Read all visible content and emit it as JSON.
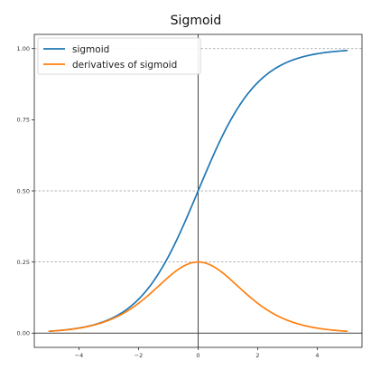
{
  "chart_data": {
    "type": "line",
    "title": "Sigmoid",
    "xlabel": "",
    "ylabel": "",
    "xlim": [
      -5.5,
      5.5
    ],
    "ylim": [
      -0.05,
      1.05
    ],
    "xticks": [
      -4,
      -2,
      0,
      2,
      4
    ],
    "yticks": [
      0.0,
      0.25,
      0.5,
      0.75,
      1.0
    ],
    "xtick_labels": [
      "−4",
      "−2",
      "0",
      "2",
      "4"
    ],
    "ytick_labels": [
      "0.00",
      "0.25",
      "0.50",
      "0.75",
      "1.00"
    ],
    "x_domain": [
      -5,
      5
    ],
    "grid": false,
    "reference_lines": {
      "horizontal_dashed": [
        0.25,
        0.5,
        1.0
      ],
      "horizontal_solid": [
        0.0
      ],
      "vertical_solid": [
        0.0
      ]
    },
    "legend": {
      "position": "top-left"
    },
    "series": [
      {
        "name": "sigmoid",
        "color": "#1f77b4",
        "function": "sigmoid",
        "x": [
          -5,
          -4,
          -3,
          -2,
          -1,
          0,
          1,
          2,
          3,
          4,
          5
        ],
        "values": [
          0.0067,
          0.018,
          0.047,
          0.119,
          0.269,
          0.5,
          0.731,
          0.881,
          0.953,
          0.982,
          0.9933
        ]
      },
      {
        "name": "derivatives of sigmoid",
        "color": "#ff7f0e",
        "function": "sigmoid_derivative",
        "x": [
          -5,
          -4,
          -3,
          -2,
          -1,
          0,
          1,
          2,
          3,
          4,
          5
        ],
        "values": [
          0.0066,
          0.0177,
          0.0452,
          0.105,
          0.197,
          0.25,
          0.197,
          0.105,
          0.0452,
          0.0177,
          0.0066
        ]
      }
    ]
  }
}
